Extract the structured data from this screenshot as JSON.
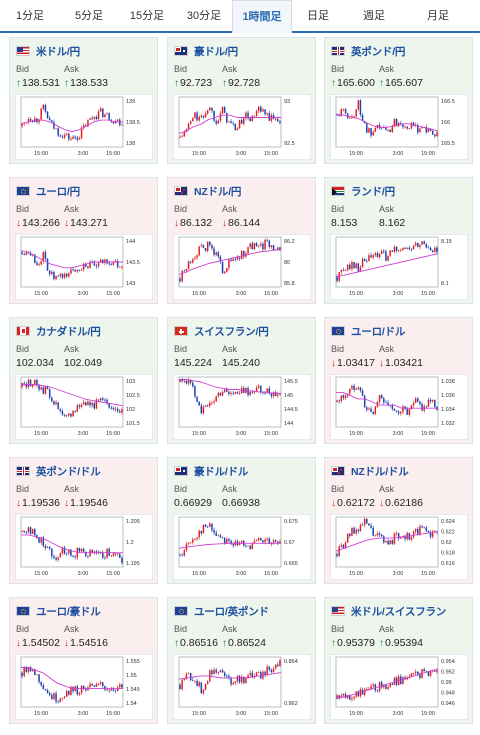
{
  "tabs": [
    "1分足",
    "5分足",
    "15分足",
    "30分足",
    "1時間足",
    "日足",
    "週足",
    "月足"
  ],
  "active_tab": 4,
  "bid_label": "Bid",
  "ask_label": "Ask",
  "colors": {
    "up_bg": "#edf5ec",
    "down_bg": "#fbeeee",
    "rise_candle": "#e02020",
    "fall_candle": "#1a3fb0",
    "moving_average": "#d040d0",
    "up_arrow": "#1a8a2e",
    "down_arrow": "#d02a2a"
  },
  "cards": [
    {
      "name": "米ドル/円",
      "flag": "us",
      "direction": "up",
      "bid": "138.531",
      "ask": "138.533",
      "yticks": [
        "139",
        "138.5",
        "138"
      ],
      "xticks": [
        "15:00",
        "3:00",
        "15:00"
      ]
    },
    {
      "name": "豪ドル/円",
      "flag": "au",
      "direction": "up",
      "bid": "92.723",
      "ask": "92.728",
      "yticks": [
        "93",
        "92.5"
      ],
      "xticks": [
        "15:00",
        "3:00",
        "15:00"
      ]
    },
    {
      "name": "英ポンド/円",
      "flag": "uk",
      "direction": "up",
      "bid": "165.600",
      "ask": "165.607",
      "yticks": [
        "166.5",
        "166",
        "165.5"
      ],
      "xticks": [
        "15:00",
        "3:00",
        "15:00"
      ]
    },
    {
      "name": "ユーロ/円",
      "flag": "eu",
      "direction": "down",
      "bid": "143.266",
      "ask": "143.271",
      "yticks": [
        "144",
        "143.5",
        "143"
      ],
      "xticks": [
        "15:00",
        "3:00",
        "15:00"
      ]
    },
    {
      "name": "NZドル/円",
      "flag": "nz",
      "direction": "down",
      "bid": "86.132",
      "ask": "86.144",
      "yticks": [
        "86.2",
        "86",
        "85.8"
      ],
      "xticks": [
        "15:00",
        "3:00",
        "15:00"
      ]
    },
    {
      "name": "ランド/円",
      "flag": "za",
      "direction": "none",
      "bid": "8.153",
      "ask": "8.162",
      "yticks": [
        "8.15",
        "8.1"
      ],
      "xticks": [
        "15:00",
        "3:00",
        "15:00"
      ]
    },
    {
      "name": "カナダドル/円",
      "flag": "ca",
      "direction": "none",
      "bid": "102.034",
      "ask": "102.049",
      "yticks": [
        "103",
        "102.5",
        "102",
        "101.5"
      ],
      "xticks": [
        "15:00",
        "3:00",
        "15:00"
      ]
    },
    {
      "name": "スイスフラン/円",
      "flag": "ch",
      "direction": "none",
      "bid": "145.224",
      "ask": "145.240",
      "yticks": [
        "145.5",
        "145",
        "144.5",
        "144"
      ],
      "xticks": [
        "15:00",
        "3:00",
        "15:00"
      ]
    },
    {
      "name": "ユーロ/ドル",
      "flag": "eu",
      "direction": "down",
      "bid": "1.03417",
      "ask": "1.03421",
      "yticks": [
        "1.038",
        "1.036",
        "1.034",
        "1.032"
      ],
      "xticks": [
        "15:00",
        "3:00",
        "15:00"
      ]
    },
    {
      "name": "英ポンド/ドル",
      "flag": "uk",
      "direction": "down",
      "bid": "1.19536",
      "ask": "1.19546",
      "yticks": [
        "1.205",
        "1.2",
        "1.195"
      ],
      "xticks": [
        "15:00",
        "3:00",
        "15:00"
      ]
    },
    {
      "name": "豪ドル/ドル",
      "flag": "au",
      "direction": "none",
      "bid": "0.66929",
      "ask": "0.66938",
      "yticks": [
        "0.675",
        "0.67",
        "0.665"
      ],
      "xticks": [
        "15:00",
        "3:00",
        "15:00"
      ]
    },
    {
      "name": "NZドル/ドル",
      "flag": "nz",
      "direction": "down",
      "bid": "0.62172",
      "ask": "0.62186",
      "yticks": [
        "0.624",
        "0.622",
        "0.62",
        "0.618",
        "0.616"
      ],
      "xticks": [
        "15:00",
        "3:00",
        "15:00"
      ]
    },
    {
      "name": "ユーロ/豪ドル",
      "flag": "eu",
      "direction": "down",
      "bid": "1.54502",
      "ask": "1.54516",
      "yticks": [
        "1.555",
        "1.55",
        "1.545",
        "1.54"
      ],
      "xticks": [
        "15:00",
        "3:00",
        "15:00"
      ]
    },
    {
      "name": "ユーロ/英ポンド",
      "flag": "eu",
      "direction": "up",
      "bid": "0.86516",
      "ask": "0.86524",
      "yticks": [
        "0.864",
        "0.862"
      ],
      "xticks": [
        "15:00",
        "3:00",
        "15:00"
      ]
    },
    {
      "name": "米ドル/スイスフラン",
      "flag": "us",
      "direction": "up",
      "bid": "0.95379",
      "ask": "0.95394",
      "yticks": [
        "0.954",
        "0.952",
        "0.95",
        "0.948",
        "0.946"
      ],
      "xticks": [
        "15:00",
        "3:00",
        "15:00"
      ]
    }
  ],
  "chart_data": [
    {
      "type": "candlestick",
      "pair": "米ドル/円",
      "ylim": [
        137.9,
        139.2
      ],
      "ma": [
        138.5,
        138.55,
        138.6,
        138.6,
        138.55,
        138.45,
        138.35,
        138.3,
        138.35,
        138.45,
        138.55,
        138.6,
        138.6,
        138.55,
        138.55
      ],
      "close": [
        138.45,
        138.7,
        138.6,
        138.9,
        138.5,
        138.3,
        138.2,
        138.1,
        138.2,
        138.5,
        138.7,
        138.8,
        138.7,
        138.6,
        138.55
      ]
    },
    {
      "type": "candlestick",
      "pair": "豪ドル/円",
      "ylim": [
        92.1,
        93.2
      ],
      "ma": [
        92.4,
        92.45,
        92.55,
        92.6,
        92.7,
        92.75,
        92.8,
        92.8,
        92.75,
        92.75,
        92.75,
        92.75,
        92.75,
        92.75,
        92.75
      ],
      "close": [
        92.3,
        92.5,
        92.8,
        92.7,
        93.0,
        92.7,
        92.9,
        92.6,
        92.5,
        92.8,
        92.7,
        92.9,
        92.8,
        92.7,
        92.72
      ]
    },
    {
      "type": "candlestick",
      "pair": "英ポンド/円",
      "ylim": [
        165.3,
        166.7
      ],
      "ma": [
        166.2,
        166.2,
        166.15,
        166.1,
        166.0,
        165.9,
        165.85,
        165.85,
        165.9,
        165.95,
        165.95,
        165.9,
        165.85,
        165.8,
        165.75
      ],
      "close": [
        166.2,
        166.3,
        166.1,
        166.5,
        165.8,
        165.6,
        165.9,
        165.7,
        166.0,
        166.0,
        165.9,
        165.8,
        165.9,
        165.7,
        165.6
      ]
    },
    {
      "type": "candlestick",
      "pair": "ユーロ/円",
      "ylim": [
        142.8,
        144.1
      ],
      "ma": [
        143.75,
        143.7,
        143.6,
        143.5,
        143.4,
        143.35,
        143.3,
        143.3,
        143.35,
        143.4,
        143.45,
        143.45,
        143.45,
        143.45,
        143.45
      ],
      "close": [
        143.7,
        143.8,
        143.4,
        143.6,
        143.1,
        143.0,
        143.1,
        143.2,
        143.3,
        143.4,
        143.3,
        143.4,
        143.5,
        143.4,
        143.27
      ]
    },
    {
      "type": "candlestick",
      "pair": "NZドル/円",
      "ylim": [
        85.7,
        86.3
      ],
      "ma": [
        85.85,
        85.88,
        85.92,
        85.95,
        85.98,
        86.0,
        86.02,
        86.04,
        86.06,
        86.08,
        86.1,
        86.12,
        86.13,
        86.14,
        86.15
      ],
      "close": [
        85.8,
        85.95,
        86.1,
        86.15,
        86.2,
        86.1,
        85.9,
        86.0,
        86.05,
        86.1,
        86.2,
        86.15,
        86.22,
        86.2,
        86.13
      ]
    },
    {
      "type": "candlestick",
      "pair": "ランド/円",
      "ylim": [
        8.05,
        8.2
      ],
      "ma": [
        8.08,
        8.085,
        8.09,
        8.095,
        8.1,
        8.105,
        8.11,
        8.115,
        8.12,
        8.125,
        8.13,
        8.135,
        8.14,
        8.145,
        8.15
      ],
      "close": [
        8.08,
        8.1,
        8.12,
        8.11,
        8.13,
        8.14,
        8.15,
        8.14,
        8.16,
        8.17,
        8.16,
        8.17,
        8.18,
        8.17,
        8.153
      ]
    },
    {
      "type": "candlestick",
      "pair": "カナダドル/円",
      "ylim": [
        101.3,
        103.3
      ],
      "ma": [
        103.0,
        103.0,
        103.0,
        102.95,
        102.9,
        102.8,
        102.7,
        102.6,
        102.5,
        102.4,
        102.35,
        102.3,
        102.25,
        102.2,
        102.15
      ],
      "close": [
        102.9,
        103.1,
        103.0,
        102.8,
        102.6,
        102.0,
        101.6,
        101.9,
        102.2,
        102.3,
        102.2,
        102.3,
        102.2,
        102.1,
        102.03
      ]
    },
    {
      "type": "candlestick",
      "pair": "スイスフラン/円",
      "ylim": [
        143.8,
        145.8
      ],
      "ma": [
        145.7,
        145.7,
        145.65,
        145.6,
        145.5,
        145.4,
        145.35,
        145.3,
        145.3,
        145.25,
        145.25,
        145.2,
        145.2,
        145.15,
        145.15
      ],
      "close": [
        145.6,
        145.7,
        145.2,
        144.5,
        144.6,
        145.0,
        145.3,
        145.2,
        145.1,
        145.3,
        145.2,
        145.3,
        145.2,
        145.2,
        145.22
      ]
    },
    {
      "type": "candlestick",
      "pair": "ユーロ/ドル",
      "ylim": [
        1.031,
        1.039
      ],
      "ma": [
        1.0365,
        1.0365,
        1.036,
        1.0355,
        1.0355,
        1.035,
        1.0345,
        1.0345,
        1.0345,
        1.034,
        1.034,
        1.034,
        1.034,
        1.034,
        1.034
      ],
      "close": [
        1.035,
        1.036,
        1.037,
        1.038,
        1.034,
        1.033,
        1.036,
        1.035,
        1.033,
        1.034,
        1.033,
        1.035,
        1.034,
        1.035,
        1.0342
      ]
    },
    {
      "type": "candlestick",
      "pair": "英ポンド/ドル",
      "ylim": [
        1.193,
        1.207
      ],
      "ma": [
        1.202,
        1.202,
        1.2015,
        1.201,
        1.2,
        1.199,
        1.198,
        1.1975,
        1.197,
        1.197,
        1.197,
        1.197,
        1.197,
        1.197,
        1.197
      ],
      "close": [
        1.203,
        1.204,
        1.201,
        1.2,
        1.197,
        1.196,
        1.198,
        1.196,
        1.198,
        1.197,
        1.198,
        1.196,
        1.197,
        1.196,
        1.1954
      ]
    },
    {
      "type": "candlestick",
      "pair": "豪ドル/ドル",
      "ylim": [
        0.664,
        0.676
      ],
      "ma": [
        0.6685,
        0.6688,
        0.669,
        0.6692,
        0.6694,
        0.6695,
        0.6696,
        0.6697,
        0.6697,
        0.6697,
        0.6697,
        0.6697,
        0.6697,
        0.6697,
        0.6697
      ],
      "close": [
        0.667,
        0.669,
        0.671,
        0.673,
        0.674,
        0.672,
        0.671,
        0.67,
        0.669,
        0.67,
        0.669,
        0.67,
        0.67,
        0.6695,
        0.6693
      ]
    },
    {
      "type": "candlestick",
      "pair": "NZドル/ドル",
      "ylim": [
        0.6155,
        0.625
      ],
      "ma": [
        0.6185,
        0.619,
        0.6195,
        0.62,
        0.6205,
        0.6208,
        0.621,
        0.621,
        0.621,
        0.6212,
        0.6214,
        0.6216,
        0.6218,
        0.622,
        0.6222
      ],
      "close": [
        0.618,
        0.62,
        0.622,
        0.623,
        0.624,
        0.622,
        0.621,
        0.62,
        0.621,
        0.622,
        0.621,
        0.622,
        0.623,
        0.622,
        0.6217
      ]
    },
    {
      "type": "candlestick",
      "pair": "ユーロ/豪ドル",
      "ylim": [
        1.538,
        1.557
      ],
      "ma": [
        1.553,
        1.553,
        1.552,
        1.551,
        1.549,
        1.547,
        1.546,
        1.545,
        1.545,
        1.545,
        1.545,
        1.545,
        1.545,
        1.545,
        1.545
      ],
      "close": [
        1.551,
        1.554,
        1.55,
        1.546,
        1.542,
        1.541,
        1.543,
        1.545,
        1.544,
        1.546,
        1.545,
        1.546,
        1.545,
        1.545,
        1.545
      ]
    },
    {
      "type": "candlestick",
      "pair": "ユーロ/英ポンド",
      "ylim": [
        0.861,
        0.8655
      ],
      "ma": [
        0.8635,
        0.8636,
        0.8637,
        0.8638,
        0.8638,
        0.8637,
        0.8636,
        0.8636,
        0.8636,
        0.8636,
        0.8637,
        0.8638,
        0.8639,
        0.864,
        0.8641
      ],
      "close": [
        0.863,
        0.864,
        0.8635,
        0.8625,
        0.8638,
        0.8645,
        0.864,
        0.8632,
        0.8637,
        0.8635,
        0.864,
        0.8638,
        0.8642,
        0.8645,
        0.8652
      ]
    },
    {
      "type": "candlestick",
      "pair": "米ドル/スイスフラン",
      "ylim": [
        0.9455,
        0.9545
      ],
      "ma": [
        0.947,
        0.9473,
        0.9476,
        0.948,
        0.9484,
        0.9488,
        0.9492,
        0.9496,
        0.95,
        0.9504,
        0.9508,
        0.9512,
        0.9516,
        0.952,
        0.9523
      ]
    },
    {
      "note": "see cards"
    }
  ]
}
